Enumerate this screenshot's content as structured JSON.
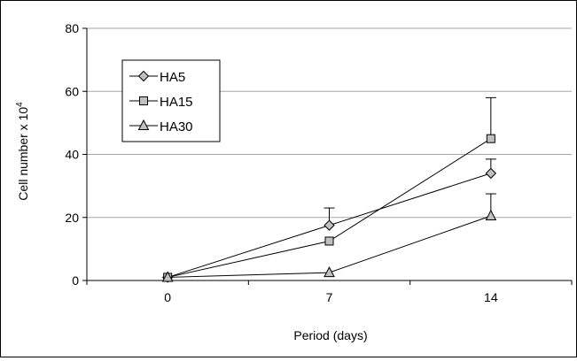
{
  "chart_data": {
    "type": "line",
    "xlabel": "Period (days)",
    "ylabel": "Cell number x 10",
    "ylabel_superscript": "4",
    "categories": [
      "0",
      "7",
      "14"
    ],
    "ylim": [
      0,
      80
    ],
    "yticks": [
      0,
      20,
      40,
      60,
      80
    ],
    "grid": true,
    "legend_position": "top-left",
    "series": [
      {
        "name": "HA5",
        "marker": "diamond",
        "values": [
          1,
          17.5,
          34
        ],
        "error_upper": [
          0,
          5.5,
          4.5
        ]
      },
      {
        "name": "HA15",
        "marker": "square",
        "values": [
          1,
          12.5,
          45
        ],
        "error_upper": [
          0,
          0,
          13
        ]
      },
      {
        "name": "HA30",
        "marker": "triangle",
        "values": [
          1,
          2.5,
          20.5
        ],
        "error_upper": [
          0,
          0,
          7
        ]
      }
    ],
    "marker_fill": "#c0c0c0",
    "line_color": "#000000",
    "grid_color": "#a6a6a6"
  }
}
